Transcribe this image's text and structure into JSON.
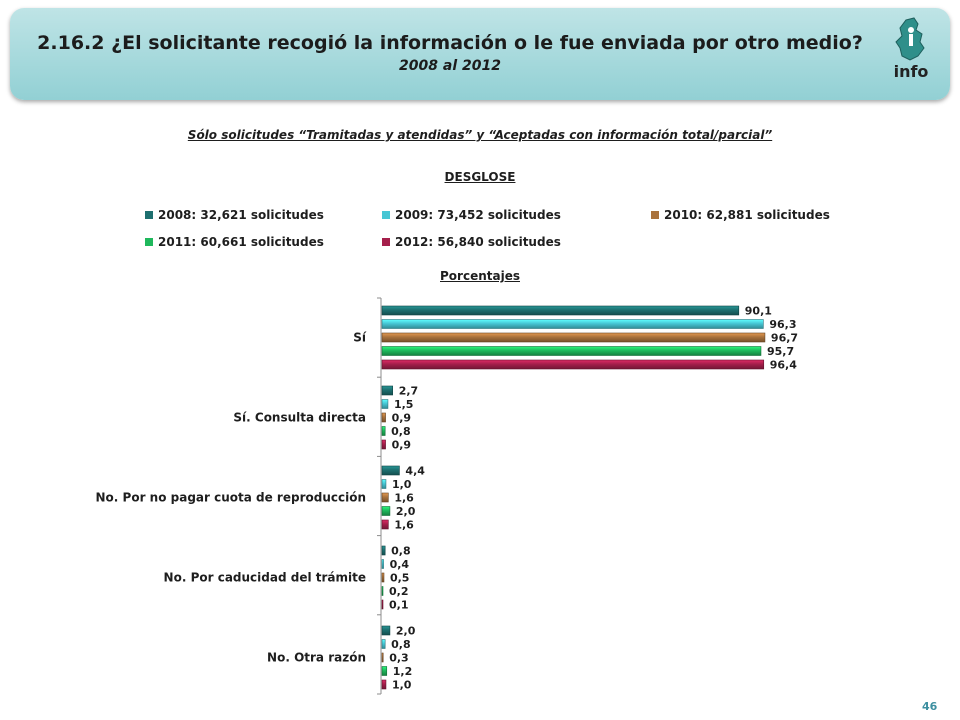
{
  "header": {
    "title": "2.16.2 ¿El solicitante recogió la información o le fue enviada por otro medio?",
    "subtitle": "2008 al 2012",
    "logo_text": "info"
  },
  "note": "Sólo solicitudes “Tramitadas y atendidas” y “Aceptadas con información total/parcial”",
  "section_label": "DESGLOSE",
  "units_label": "Porcentajes",
  "page_number": "46",
  "legend": [
    {
      "label": "2008: 32,621 solicitudes",
      "color": "#1d6f6f"
    },
    {
      "label": "2009: 73,452 solicitudes",
      "color": "#47c6d4"
    },
    {
      "label": "2010: 62,881 solicitudes",
      "color": "#a9723c"
    },
    {
      "label": "2011: 60,661 solicitudes",
      "color": "#1fb85c"
    },
    {
      "label": "2012: 56,840 solicitudes",
      "color": "#a51f4b"
    }
  ],
  "chart_data": {
    "type": "bar",
    "orientation": "horizontal",
    "categories": [
      "Sí",
      "Sí. Consulta directa",
      "No. Por no pagar cuota de reproducción",
      "No. Por caducidad del trámite",
      "No. Otra razón"
    ],
    "series": [
      {
        "name": "2008: 32,621 solicitudes",
        "values": [
          90.1,
          2.7,
          4.4,
          0.8,
          2.0
        ],
        "labels": [
          "90,1",
          "2,7",
          "4,4",
          "0,8",
          "2,0"
        ],
        "color": "#1d6f6f"
      },
      {
        "name": "2009: 73,452 solicitudes",
        "values": [
          96.3,
          1.5,
          1.0,
          0.4,
          0.8
        ],
        "labels": [
          "96,3",
          "1,5",
          "1,0",
          "0,4",
          "0,8"
        ],
        "color": "#47c6d4"
      },
      {
        "name": "2010: 62,881 solicitudes",
        "values": [
          96.7,
          0.9,
          1.6,
          0.5,
          0.3
        ],
        "labels": [
          "96,7",
          "0,9",
          "1,6",
          "0,5",
          "0,3"
        ],
        "color": "#a9723c"
      },
      {
        "name": "2011: 60,661 solicitudes",
        "values": [
          95.7,
          0.8,
          2.0,
          0.2,
          1.2
        ],
        "labels": [
          "95,7",
          "0,8",
          "2,0",
          "0,2",
          "1,2"
        ],
        "color": "#1fb85c"
      },
      {
        "name": "2012: 56,840 solicitudes",
        "values": [
          96.4,
          0.9,
          1.6,
          0.1,
          1.0
        ],
        "labels": [
          "96,4",
          "0,9",
          "1,6",
          "0,1",
          "1,0"
        ],
        "color": "#a51f4b"
      }
    ],
    "xlim": [
      0,
      100
    ],
    "xlabel": "",
    "ylabel": "",
    "grid": false,
    "legend_position": "top"
  }
}
